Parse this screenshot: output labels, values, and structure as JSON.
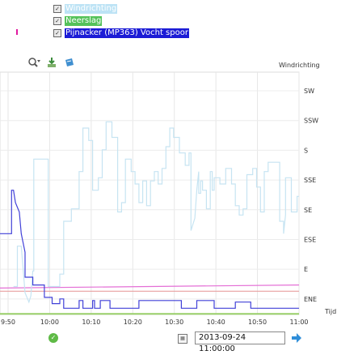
{
  "legend": [
    {
      "label": "Windrichting",
      "bg": "#bde3f5",
      "checked": true
    },
    {
      "label": "Neerslag",
      "bg": "#54c25a",
      "checked": true
    },
    {
      "label": "Pijnacker (MP363) Vocht spoor",
      "bg": "#1c1cd6",
      "checked": true
    }
  ],
  "toolbar": {
    "icons": [
      "zoom-icon",
      "export-icon",
      "print-icon"
    ]
  },
  "axis": {
    "y_title": "Windrichting",
    "x_unit": "Tijd"
  },
  "datetime": {
    "value": "2013-09-24 11:00:00"
  },
  "colors": {
    "wind": "#c6e4f2",
    "rain": "#9acf6a",
    "moisture": "#4141d8",
    "pink": "#e46fd6",
    "red": "#e8a0a0"
  },
  "chart_data": {
    "type": "line",
    "x_ticks": [
      "9:50",
      "10:00",
      "10:10",
      "10:20",
      "10:30",
      "10:40",
      "10:50",
      "11:00"
    ],
    "y_ticks": [
      "SW",
      "SSW",
      "S",
      "SSE",
      "SE",
      "ESE",
      "E",
      "ENE"
    ],
    "y_title": "Windrichting",
    "x_label": "Tijd",
    "series": [
      {
        "name": "Windrichting",
        "color": "#c6e4f2",
        "points": [
          [
            9.52,
            0.9
          ],
          [
            9.54,
            0.9
          ],
          [
            9.54,
            2.2
          ],
          [
            9.56,
            2.2
          ],
          [
            9.58,
            0.7
          ],
          [
            9.6,
            0.4
          ],
          [
            9.61,
            0.6
          ],
          [
            9.62,
            1.4
          ],
          [
            9.625,
            1.4
          ],
          [
            9.625,
            5.0
          ],
          [
            9.7,
            5.0
          ],
          [
            9.7,
            0.9
          ],
          [
            9.76,
            0.9
          ],
          [
            9.76,
            1.3
          ],
          [
            9.78,
            1.3
          ],
          [
            9.78,
            3.0
          ],
          [
            9.82,
            3.0
          ],
          [
            9.82,
            3.4
          ],
          [
            9.86,
            3.4
          ],
          [
            9.86,
            4.6
          ],
          [
            9.88,
            4.6
          ],
          [
            9.88,
            6.0
          ],
          [
            9.91,
            6.0
          ],
          [
            9.91,
            5.6
          ],
          [
            9.93,
            5.6
          ],
          [
            9.93,
            4.0
          ],
          [
            9.96,
            4.0
          ],
          [
            9.96,
            4.4
          ],
          [
            9.98,
            4.4
          ],
          [
            9.98,
            5.3
          ],
          [
            10.0,
            5.3
          ],
          [
            10.0,
            6.2
          ],
          [
            10.03,
            6.2
          ],
          [
            10.03,
            5.7
          ],
          [
            10.06,
            5.7
          ],
          [
            10.06,
            3.3
          ],
          [
            10.08,
            3.3
          ],
          [
            10.08,
            3.6
          ],
          [
            10.1,
            3.6
          ],
          [
            10.1,
            5.0
          ],
          [
            10.13,
            5.0
          ],
          [
            10.13,
            4.6
          ],
          [
            10.15,
            4.6
          ],
          [
            10.15,
            4.2
          ],
          [
            10.17,
            4.2
          ],
          [
            10.17,
            3.6
          ],
          [
            10.19,
            3.6
          ],
          [
            10.19,
            4.3
          ],
          [
            10.21,
            4.3
          ],
          [
            10.21,
            3.5
          ],
          [
            10.23,
            3.5
          ],
          [
            10.23,
            4.3
          ],
          [
            10.25,
            4.3
          ],
          [
            10.25,
            4.6
          ],
          [
            10.27,
            4.6
          ],
          [
            10.27,
            4.2
          ],
          [
            10.29,
            4.2
          ],
          [
            10.29,
            4.7
          ],
          [
            10.31,
            4.7
          ],
          [
            10.31,
            5.4
          ],
          [
            10.33,
            5.4
          ],
          [
            10.33,
            6.0
          ],
          [
            10.35,
            6.0
          ],
          [
            10.35,
            5.7
          ],
          [
            10.38,
            5.7
          ],
          [
            10.38,
            5.2
          ],
          [
            10.41,
            5.2
          ],
          [
            10.41,
            4.8
          ],
          [
            10.43,
            4.8
          ],
          [
            10.43,
            5.2
          ],
          [
            10.44,
            5.2
          ],
          [
            10.44,
            2.7
          ],
          [
            10.46,
            3.1
          ],
          [
            10.47,
            4.0
          ],
          [
            10.48,
            4.6
          ],
          [
            10.48,
            3.9
          ],
          [
            10.49,
            3.9
          ],
          [
            10.49,
            4.3
          ],
          [
            10.5,
            4.3
          ],
          [
            10.5,
            4.0
          ],
          [
            10.52,
            4.0
          ],
          [
            10.52,
            3.4
          ],
          [
            10.54,
            3.4
          ],
          [
            10.54,
            4.6
          ],
          [
            10.55,
            4.6
          ],
          [
            10.55,
            4.0
          ],
          [
            10.56,
            4.0
          ],
          [
            10.56,
            4.4
          ],
          [
            10.59,
            4.4
          ],
          [
            10.59,
            4.2
          ],
          [
            10.62,
            4.2
          ],
          [
            10.62,
            4.7
          ],
          [
            10.65,
            4.7
          ],
          [
            10.65,
            4.2
          ],
          [
            10.67,
            4.2
          ],
          [
            10.67,
            3.5
          ],
          [
            10.69,
            3.5
          ],
          [
            10.69,
            3.2
          ],
          [
            10.71,
            3.2
          ],
          [
            10.71,
            3.4
          ],
          [
            10.73,
            3.4
          ],
          [
            10.73,
            4.5
          ],
          [
            10.76,
            4.5
          ],
          [
            10.76,
            4.7
          ],
          [
            10.78,
            4.7
          ],
          [
            10.78,
            4.1
          ],
          [
            10.8,
            4.1
          ],
          [
            10.8,
            3.3
          ],
          [
            10.82,
            3.3
          ],
          [
            10.82,
            4.6
          ],
          [
            10.84,
            4.6
          ],
          [
            10.84,
            4.9
          ],
          [
            10.9,
            4.9
          ],
          [
            10.9,
            3.0
          ],
          [
            10.92,
            3.0
          ],
          [
            10.92,
            2.6
          ],
          [
            10.93,
            3.2
          ],
          [
            10.93,
            4.4
          ],
          [
            10.96,
            4.4
          ],
          [
            10.96,
            3.3
          ],
          [
            10.99,
            3.3
          ],
          [
            10.99,
            3.8
          ],
          [
            11.0,
            3.8
          ]
        ]
      },
      {
        "name": "Pijnacker (MP363) Vocht spoor",
        "color": "#4141d8",
        "points": [
          [
            9.45,
            2.6
          ],
          [
            9.51,
            2.6
          ],
          [
            9.51,
            4.0
          ],
          [
            9.52,
            4.0
          ],
          [
            9.53,
            3.6
          ],
          [
            9.55,
            3.3
          ],
          [
            9.56,
            2.6
          ],
          [
            9.58,
            2.0
          ],
          [
            9.58,
            1.2
          ],
          [
            9.62,
            1.2
          ],
          [
            9.62,
            0.95
          ],
          [
            9.68,
            0.95
          ],
          [
            9.68,
            0.55
          ],
          [
            9.72,
            0.55
          ],
          [
            9.72,
            0.35
          ],
          [
            9.76,
            0.35
          ],
          [
            9.76,
            0.5
          ],
          [
            9.78,
            0.5
          ],
          [
            9.78,
            0.2
          ],
          [
            9.86,
            0.2
          ],
          [
            9.86,
            0.45
          ],
          [
            9.88,
            0.45
          ],
          [
            9.88,
            0.2
          ],
          [
            9.93,
            0.2
          ],
          [
            9.93,
            0.45
          ],
          [
            9.94,
            0.45
          ],
          [
            9.94,
            0.2
          ],
          [
            9.97,
            0.2
          ],
          [
            9.97,
            0.45
          ],
          [
            10.02,
            0.45
          ],
          [
            10.02,
            0.2
          ],
          [
            10.17,
            0.2
          ],
          [
            10.17,
            0.45
          ],
          [
            10.39,
            0.45
          ],
          [
            10.39,
            0.2
          ],
          [
            10.47,
            0.2
          ],
          [
            10.47,
            0.45
          ],
          [
            10.56,
            0.45
          ],
          [
            10.56,
            0.2
          ],
          [
            10.67,
            0.2
          ],
          [
            10.67,
            0.4
          ],
          [
            10.75,
            0.4
          ],
          [
            10.75,
            0.2
          ],
          [
            11.0,
            0.2
          ]
        ]
      },
      {
        "name": "pink",
        "color": "#e46fd6",
        "points": [
          [
            9.45,
            0.85
          ],
          [
            11.0,
            0.95
          ]
        ]
      },
      {
        "name": "red",
        "color": "#e8a0a0",
        "points": [
          [
            9.45,
            0.75
          ],
          [
            11.0,
            0.75
          ]
        ]
      },
      {
        "name": "Neerslag",
        "color": "#9acf6a",
        "points": [
          [
            9.45,
            0.02
          ],
          [
            11.0,
            0.02
          ]
        ]
      }
    ]
  }
}
